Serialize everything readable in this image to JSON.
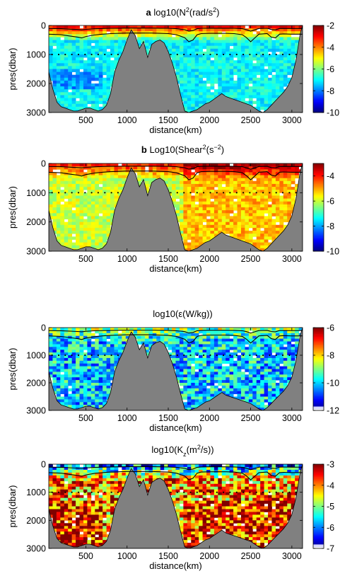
{
  "colors": {
    "topography": "#808080",
    "contour": "#000000",
    "colormap": "jet"
  },
  "chart_data": [
    {
      "type": "heatmap",
      "panel_letter": "a",
      "title_parts": [
        {
          "t": "log10(N"
        },
        {
          "t": "2",
          "sup": true
        },
        {
          "t": "(rad/s"
        },
        {
          "t": "2",
          "sup": true
        },
        {
          "t": ")"
        }
      ],
      "title_plain": "log10(N2(rad/s2)",
      "xlabel": "distance(km)",
      "ylabel": "pres(dbar)",
      "xlim": [
        50,
        3130
      ],
      "ylim": [
        3000,
        0
      ],
      "x_ticks": [
        "500",
        "1000",
        "1500",
        "2000",
        "2500",
        "3000"
      ],
      "y_ticks": [
        "0",
        "1000",
        "2000",
        "3000"
      ],
      "colorbar": {
        "min": -10,
        "max": -2,
        "ticks": [
          "-2",
          "-4",
          "-6",
          "-8",
          "-10"
        ]
      },
      "approx_deep_value": -7,
      "approx_surface_value": -3
    },
    {
      "type": "heatmap",
      "panel_letter": "b",
      "title_parts": [
        {
          "t": "Log10(Shear"
        },
        {
          "t": "2",
          "sup": true
        },
        {
          "t": "(s"
        },
        {
          "t": "−2",
          "sup": true
        },
        {
          "t": ")"
        }
      ],
      "title_plain": "Log10(Shear2(s−2)",
      "xlabel": "distance(km)",
      "ylabel": "pres(dbar)",
      "xlim": [
        50,
        3130
      ],
      "ylim": [
        3000,
        0
      ],
      "x_ticks": [
        "500",
        "1000",
        "1500",
        "2000",
        "2500",
        "3000"
      ],
      "y_ticks": [
        "0",
        "1000",
        "2000",
        "3000"
      ],
      "colorbar": {
        "min": -10,
        "max": -3,
        "ticks": [
          "-4",
          "-6",
          "-8",
          "-10"
        ]
      },
      "approx_deep_value": -6,
      "approx_surface_value": -4
    },
    {
      "type": "heatmap",
      "panel_letter": "",
      "title_parts": [
        {
          "t": "log10(ε(W/kg))"
        }
      ],
      "title_plain": "log10(ε(W/kg))",
      "xlabel": "distance(km)",
      "ylabel": "pres(dbar)",
      "xlim": [
        50,
        3130
      ],
      "ylim": [
        3000,
        0
      ],
      "x_ticks": [
        "500",
        "1000",
        "1500",
        "2000",
        "2500",
        "3000"
      ],
      "y_ticks": [
        "0",
        "1000",
        "2000",
        "3000"
      ],
      "colorbar": {
        "min": -12,
        "max": -6,
        "ticks": [
          "-6",
          "-8",
          "-10",
          "-12"
        ]
      },
      "approx_deep_value": -10,
      "approx_surface_value": -9
    },
    {
      "type": "heatmap",
      "panel_letter": "",
      "title_parts": [
        {
          "t": "log10(K"
        },
        {
          "t": "z",
          "sub": true
        },
        {
          "t": "(m"
        },
        {
          "t": "2",
          "sup": true
        },
        {
          "t": "/s))"
        }
      ],
      "title_plain": "log10(Kz(m2/s))",
      "xlabel": "distance(km)",
      "ylabel": "pres(dbar)",
      "xlim": [
        50,
        3130
      ],
      "ylim": [
        3000,
        0
      ],
      "x_ticks": [
        "500",
        "1000",
        "1500",
        "2000",
        "2500",
        "3000"
      ],
      "y_ticks": [
        "0",
        "1000",
        "2000",
        "3000"
      ],
      "colorbar": {
        "min": -7,
        "max": -3,
        "ticks": [
          "-3",
          "-4",
          "-5",
          "-6",
          "-7"
        ]
      },
      "approx_deep_value": -4,
      "approx_surface_value": -6
    }
  ],
  "bathymetry_profile": {
    "distance_km": [
      50,
      100,
      150,
      200,
      250,
      300,
      350,
      400,
      450,
      500,
      550,
      600,
      650,
      700,
      750,
      800,
      850,
      900,
      950,
      1000,
      1050,
      1100,
      1150,
      1200,
      1250,
      1300,
      1350,
      1400,
      1450,
      1500,
      1550,
      1600,
      1650,
      1700,
      1750,
      1800,
      1850,
      1900,
      1950,
      2000,
      2050,
      2100,
      2150,
      2200,
      2250,
      2300,
      2350,
      2400,
      2450,
      2500,
      2550,
      2600,
      2650,
      2700,
      2750,
      2800,
      2850,
      2900,
      2950,
      3000,
      3050,
      3100,
      3130
    ],
    "depth_dbar": [
      1600,
      2200,
      2650,
      2800,
      2850,
      2900,
      2950,
      2950,
      2900,
      2850,
      2850,
      2900,
      2950,
      2900,
      2750,
      2350,
      1600,
      1200,
      900,
      500,
      150,
      350,
      800,
      550,
      1100,
      650,
      550,
      500,
      600,
      900,
      1300,
      1800,
      2400,
      2950,
      3000,
      2950,
      2900,
      2800,
      2700,
      2650,
      2550,
      2450,
      2350,
      2450,
      2500,
      2550,
      2600,
      2650,
      2700,
      2750,
      2850,
      2950,
      3000,
      2900,
      2750,
      2600,
      2450,
      2300,
      2100,
      1800,
      1200,
      300,
      0
    ]
  },
  "mixed_layer_contour": {
    "distance_km": [
      50,
      200,
      300,
      400,
      450,
      500,
      600,
      700,
      800,
      900,
      1000,
      1100,
      1200,
      1300,
      1400,
      1500,
      1600,
      1700,
      1750,
      1800,
      1850,
      1900,
      2000,
      2100,
      2200,
      2300,
      2400,
      2450,
      2500,
      2550,
      2600,
      2700,
      2750,
      2800,
      2850,
      2900,
      3000,
      3130
    ],
    "pres_dbar": [
      300,
      320,
      360,
      400,
      430,
      380,
      330,
      300,
      280,
      270,
      260,
      260,
      260,
      260,
      270,
      280,
      320,
      420,
      560,
      500,
      320,
      280,
      270,
      270,
      270,
      280,
      320,
      420,
      560,
      430,
      300,
      280,
      400,
      430,
      300,
      290,
      300,
      300
    ]
  },
  "reference_depth_dbar": 1000
}
